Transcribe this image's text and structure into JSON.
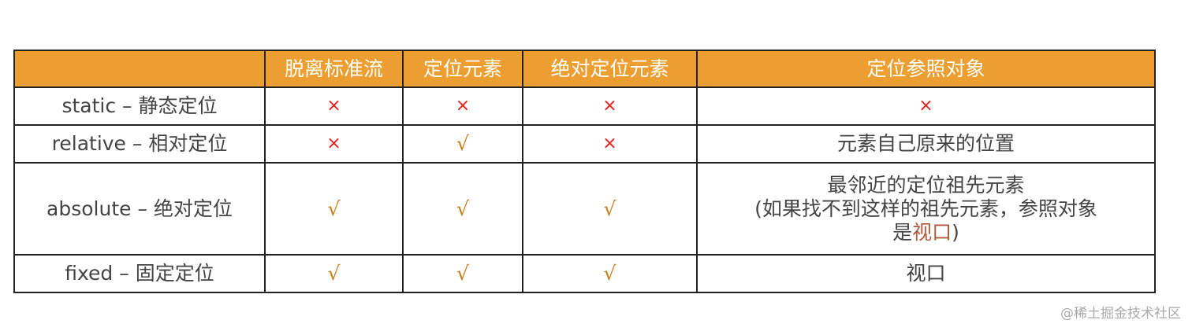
{
  "headers": [
    "",
    "脱离标准流",
    "定位元素",
    "绝对定位元素",
    "定位参照对象"
  ],
  "rows": [
    {
      "name": "static – 静态定位",
      "cells": [
        "×",
        "×",
        "×"
      ],
      "ref": "×"
    },
    {
      "name": "relative – 相对定位",
      "cells": [
        "×",
        "√",
        "×"
      ],
      "ref": "元素自己原来的位置"
    },
    {
      "name": "absolute – 绝对定位",
      "cells": [
        "√",
        "√",
        "√"
      ],
      "ref_lines": [
        "最邻近的定位祖先元素",
        "(如果找不到这样的祖先元素，参照对象",
        "是"
      ],
      "ref_highlight": "视口",
      "ref_tail": ")"
    },
    {
      "name": "fixed – 固定定位",
      "cells": [
        "√",
        "√",
        "√"
      ],
      "ref": "视口"
    }
  ],
  "colors": {
    "header": "#ec9f30",
    "cross": "#e0201a",
    "check": "#c8801e"
  },
  "watermark": "@稀土掘金技术社区"
}
